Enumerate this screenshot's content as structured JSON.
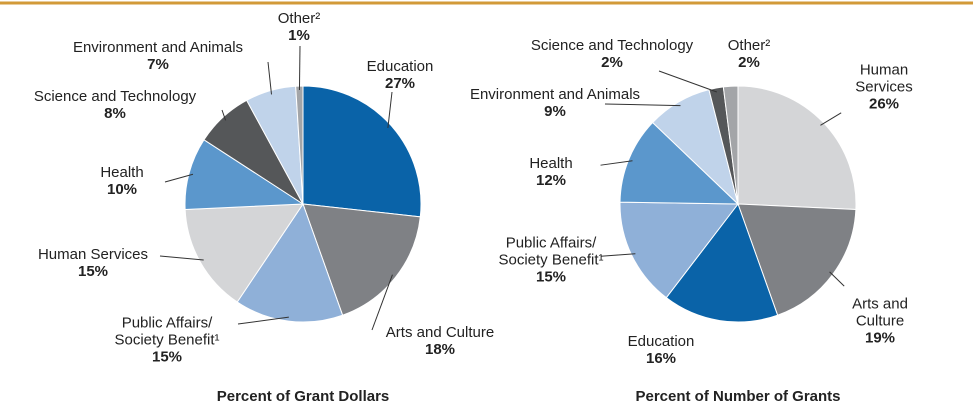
{
  "chart_data": [
    {
      "type": "pie",
      "title": "Percent of Grant Dollars",
      "categories": [
        "Education",
        "Arts and Culture",
        "Public Affairs/\nSociety Benefit¹",
        "Human Services",
        "Health",
        "Science and Technology",
        "Environment and Animals",
        "Other²"
      ],
      "values": [
        27,
        18,
        15,
        15,
        10,
        8,
        7,
        1
      ],
      "value_labels": [
        "27%",
        "18%",
        "15%",
        "15%",
        "10%",
        "8%",
        "7%",
        "1%"
      ],
      "colors": [
        "#0a63a8",
        "#7f8185",
        "#8fb0d8",
        "#d4d5d7",
        "#5b97cc",
        "#555759",
        "#c0d3ea",
        "#a3a5a8"
      ]
    },
    {
      "type": "pie",
      "title": "Percent of Number of Grants",
      "categories": [
        "Human Services",
        "Arts and Culture",
        "Education",
        "Public Affairs/\nSociety Benefit¹",
        "Health",
        "Environment and Animals",
        "Science and Technology",
        "Other²"
      ],
      "values": [
        26,
        19,
        16,
        15,
        12,
        9,
        2,
        2
      ],
      "value_labels": [
        "26%",
        "19%",
        "16%",
        "15%",
        "12%",
        "9%",
        "2%",
        "2%"
      ],
      "colors": [
        "#d4d5d7",
        "#7f8185",
        "#0a63a8",
        "#8fb0d8",
        "#5b97cc",
        "#c0d3ea",
        "#555759",
        "#a3a5a8"
      ]
    }
  ]
}
